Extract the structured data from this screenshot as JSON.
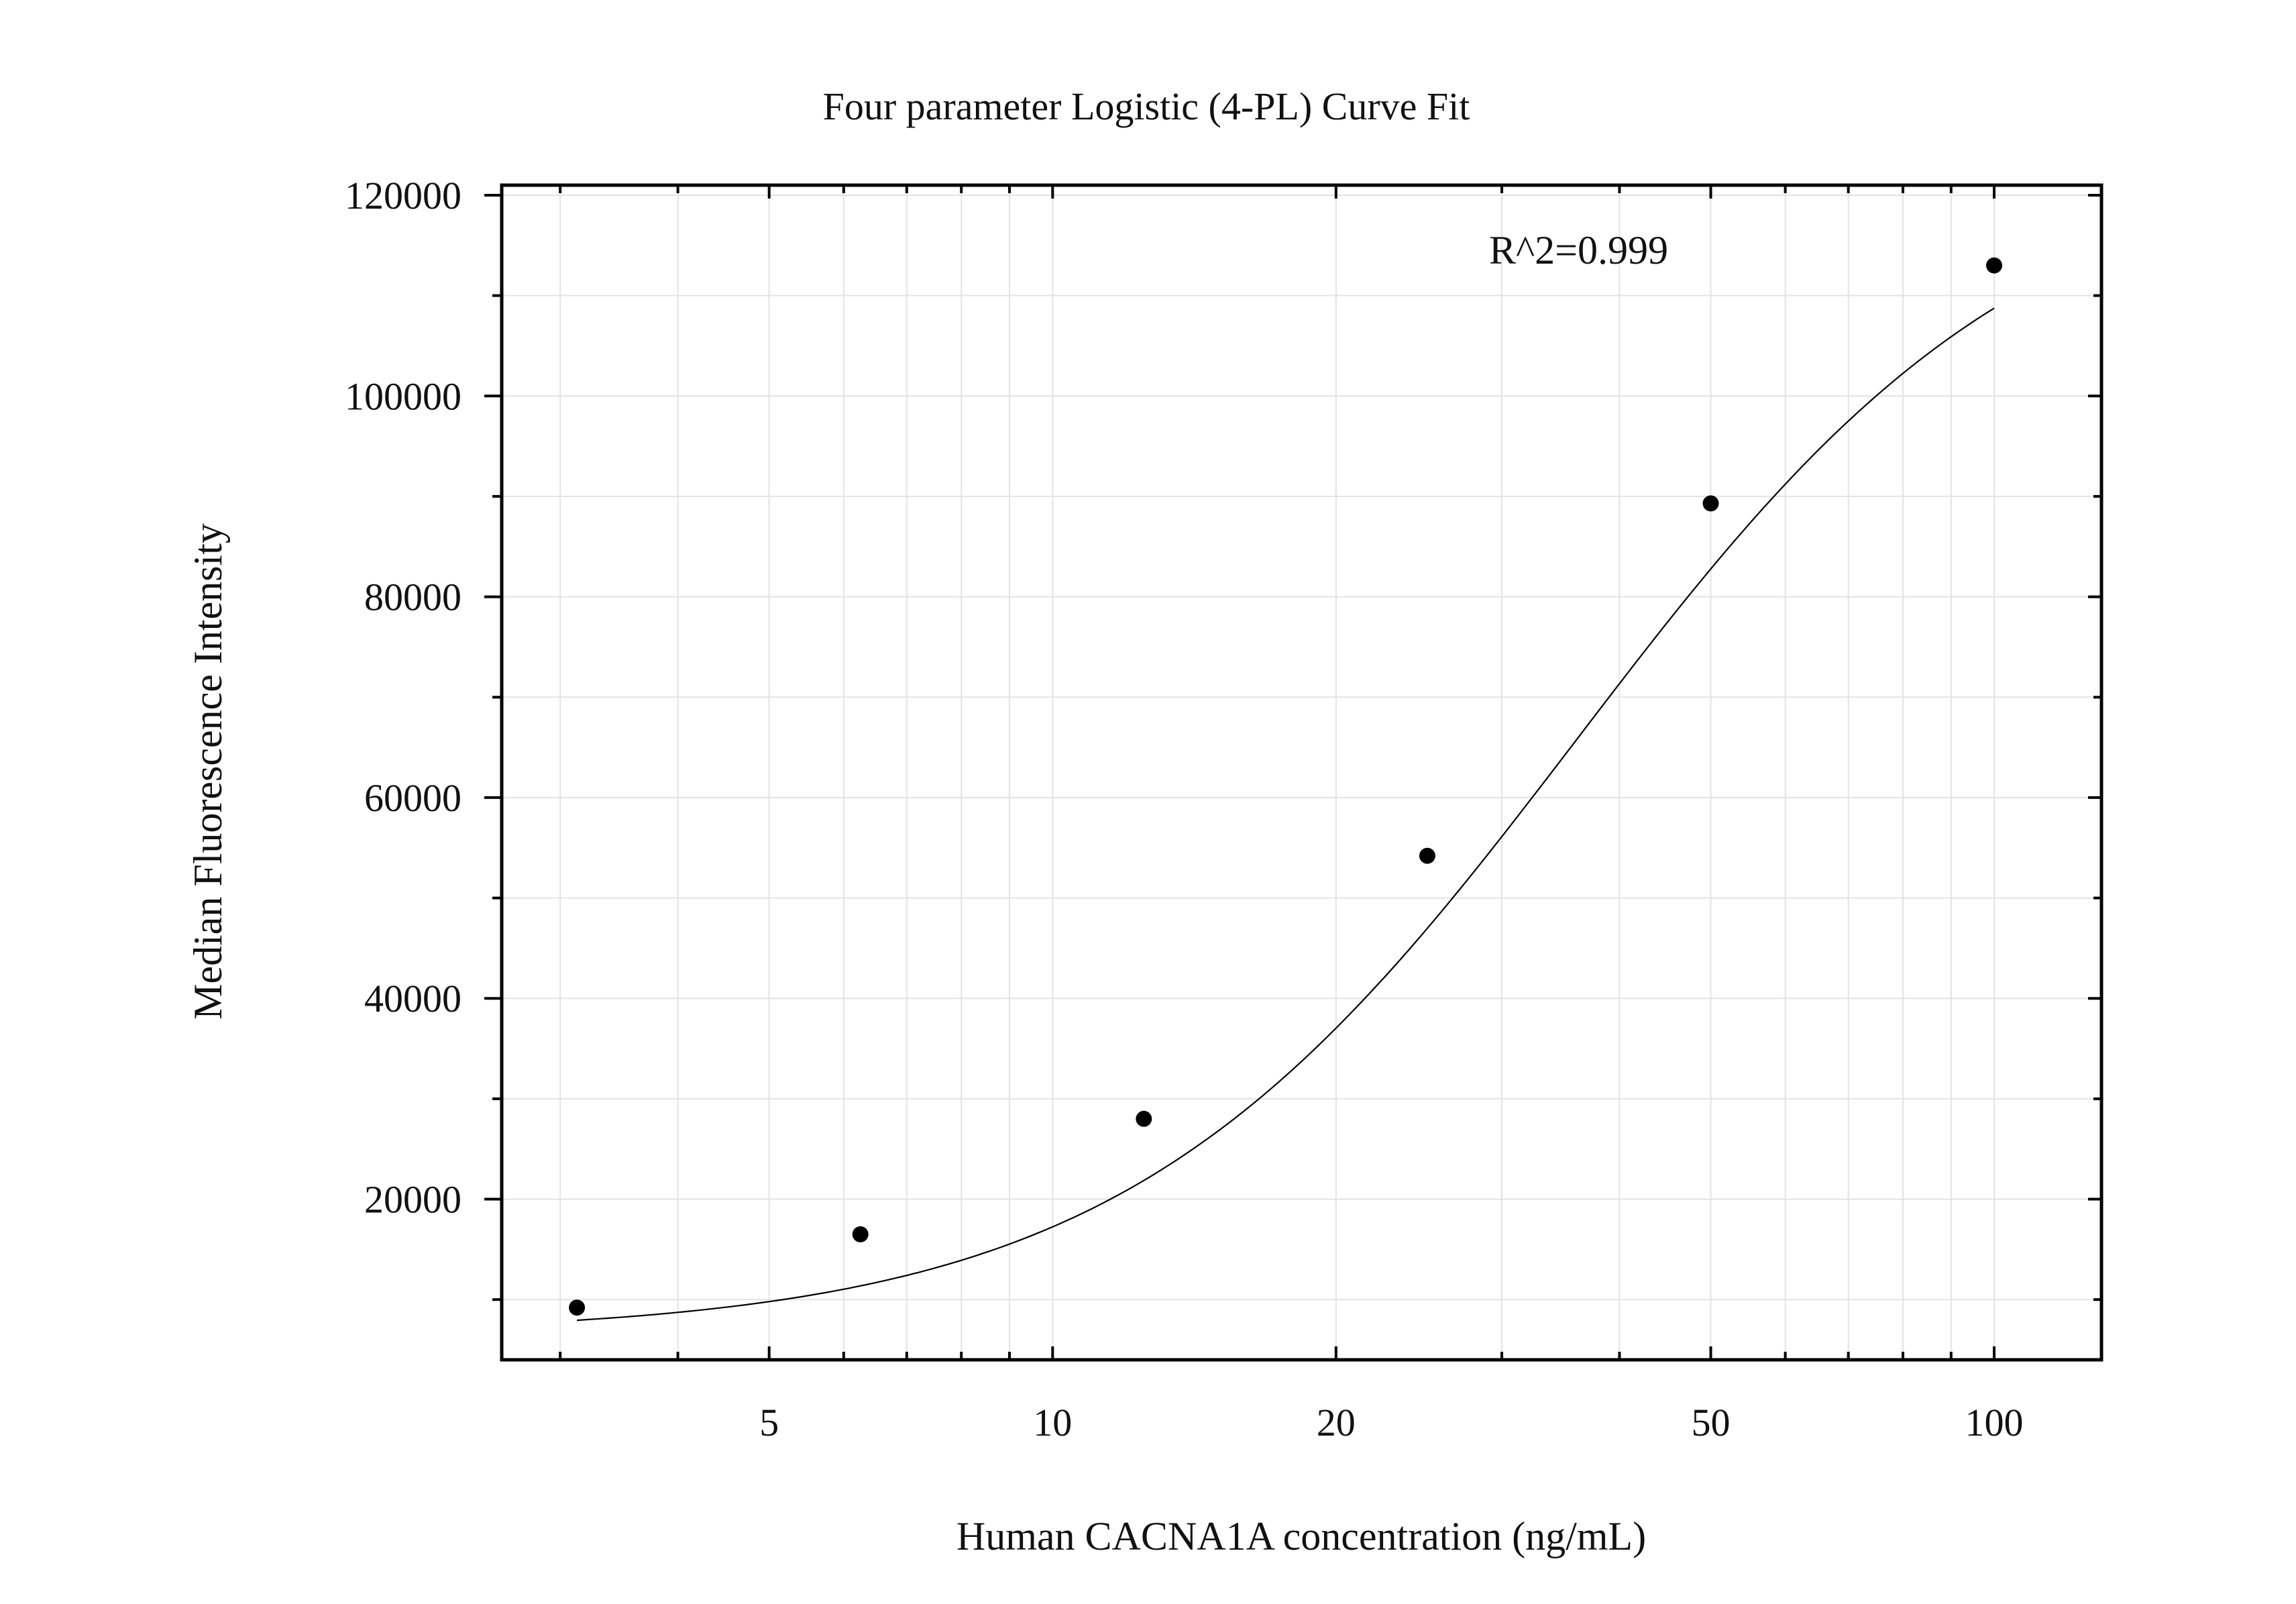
{
  "chart_data": {
    "type": "scatter",
    "title": "Four parameter Logistic (4-PL) Curve Fit",
    "xlabel": "Human CACNA1A concentration (ng/mL)",
    "ylabel": "Median Fluorescence Intensity",
    "x_scale": "log",
    "xlim": [
      2.6,
      130
    ],
    "ylim": [
      4000,
      121000
    ],
    "x_ticks": [
      5,
      10,
      20,
      50,
      100
    ],
    "x_tick_labels": [
      "5",
      "10",
      "20",
      "50",
      "100"
    ],
    "y_ticks": [
      20000,
      40000,
      60000,
      80000,
      100000,
      120000
    ],
    "y_tick_labels": [
      "20000",
      "40000",
      "60000",
      "80000",
      "100000",
      "120000"
    ],
    "grid": true,
    "annotation": "R^2=0.999",
    "series": [
      {
        "kind": "points",
        "x": [
          3.125,
          6.25,
          12.5,
          25,
          50,
          100
        ],
        "y": [
          9200,
          16500,
          28000,
          54200,
          89300,
          113000
        ]
      },
      {
        "kind": "fit",
        "model": "4PL",
        "x_range": [
          3.125,
          100
        ],
        "params": {
          "A": 6500,
          "B": 1.8,
          "C": 36,
          "D": 125000
        }
      }
    ],
    "colors": {
      "points": "#000000",
      "curve": "#000000",
      "grid": "#e3e3e3",
      "frame": "#000000"
    }
  }
}
